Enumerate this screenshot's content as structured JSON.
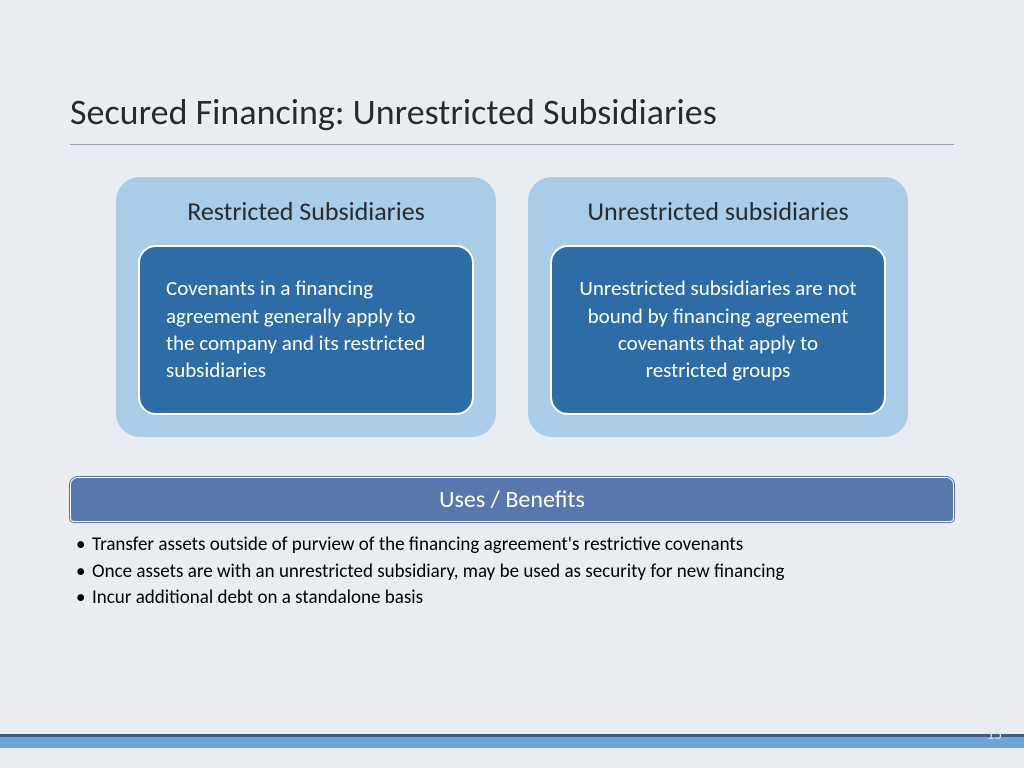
{
  "slide": {
    "title": "Secured Financing: Unrestricted Subsidiaries",
    "page_number": "15",
    "background_color": "#e9edf1",
    "footer_bar_color": "#6fa5d6",
    "footer_accent_color": "#3a5e8c"
  },
  "cards": {
    "left": {
      "outer_title": "Restricted Subsidiaries",
      "inner_text": "Covenants in a financing agreement generally apply to the company and its restricted subsidiaries",
      "outer_color": "#a9cce9",
      "inner_color": "#2e6ca8",
      "text_align": "left"
    },
    "right": {
      "outer_title": "Unrestricted subsidiaries",
      "inner_text": "Unrestricted subsidiaries are not bound by financing agreement covenants that apply to restricted groups",
      "outer_color": "#a9cce9",
      "inner_color": "#2e6ca8",
      "text_align": "center"
    }
  },
  "benefits": {
    "header": "Uses / Benefits",
    "header_color": "#5877ad",
    "items": [
      "Transfer assets outside of purview of the financing agreement's restrictive covenants",
      "Once assets are with an unrestricted subsidiary, may be used as security for new financing",
      "Incur additional debt on a standalone basis"
    ]
  }
}
